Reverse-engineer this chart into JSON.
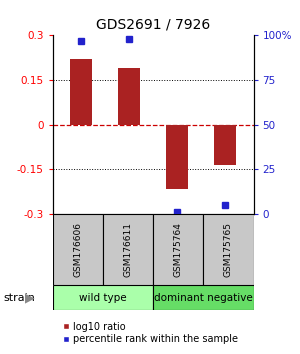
{
  "title": "GDS2691 / 7926",
  "samples": [
    "GSM176606",
    "GSM176611",
    "GSM175764",
    "GSM175765"
  ],
  "log10_ratios": [
    0.22,
    0.19,
    -0.215,
    -0.135
  ],
  "percentile_ranks": [
    97,
    98,
    1,
    5
  ],
  "ylim_left": [
    -0.3,
    0.3
  ],
  "ylim_right": [
    0,
    100
  ],
  "yticks_left": [
    -0.3,
    -0.15,
    0,
    0.15,
    0.3
  ],
  "yticks_right": [
    0,
    25,
    50,
    75,
    100
  ],
  "ytick_labels_left": [
    "-0.3",
    "-0.15",
    "0",
    "0.15",
    "0.3"
  ],
  "ytick_labels_right": [
    "0",
    "25",
    "50",
    "75",
    "100%"
  ],
  "bar_color": "#aa2222",
  "dot_color": "#2222cc",
  "zero_line_color": "#cc0000",
  "grid_color": "#000000",
  "groups": [
    {
      "label": "wild type",
      "indices": [
        0,
        1
      ],
      "color": "#aaffaa"
    },
    {
      "label": "dominant negative",
      "indices": [
        2,
        3
      ],
      "color": "#66dd66"
    }
  ],
  "legend_red_label": "log10 ratio",
  "legend_blue_label": "percentile rank within the sample",
  "strain_label": "strain",
  "bar_width": 0.45,
  "bg_color": "#ffffff"
}
